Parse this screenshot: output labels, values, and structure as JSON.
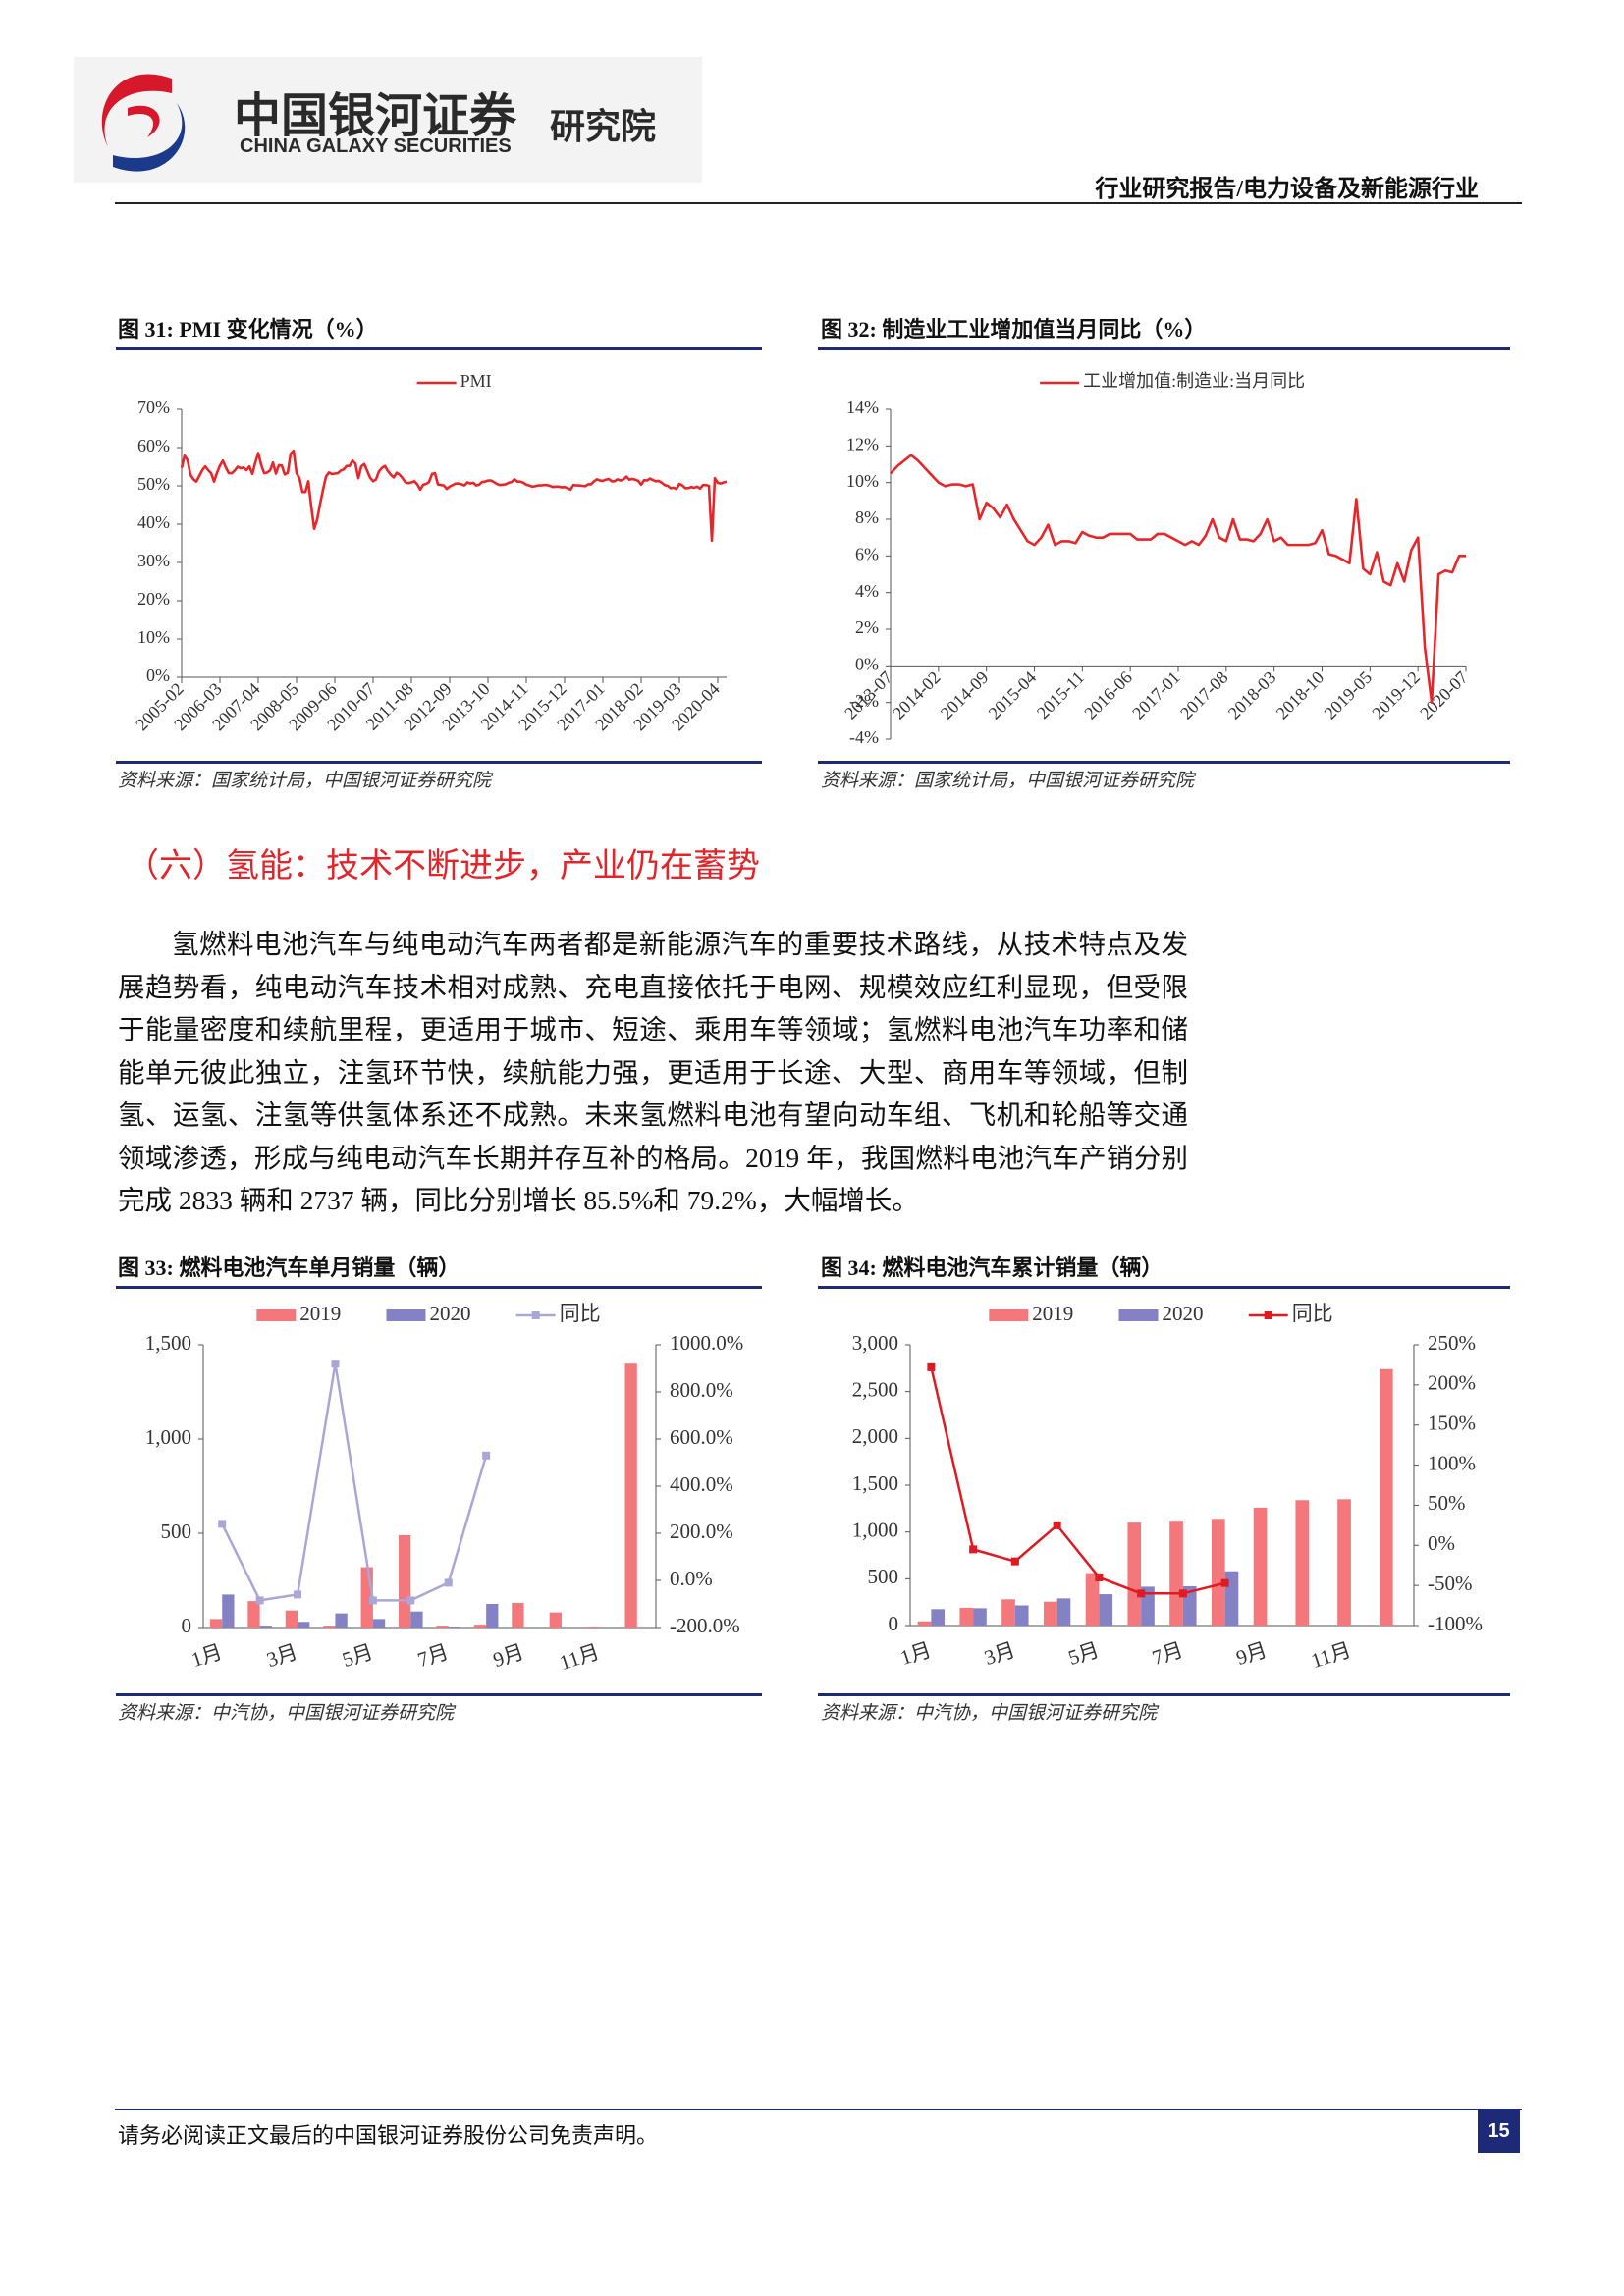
{
  "header": {
    "brand_cn": "中国银河证券",
    "brand_en": "CHINA GALAXY SECURITIES",
    "institute": "研究院",
    "report_type": "行业研究报告/电力设备及新能源行业"
  },
  "figures": [
    {
      "caption": "图 31: PMI 变化情况（%）",
      "source": "资料来源：国家统计局，中国银河证券研究院",
      "chart": {
        "type": "line",
        "categories": [
          "2005-02",
          null,
          null,
          null,
          null,
          null,
          null,
          null,
          null,
          null,
          null,
          null,
          null,
          "2006-03",
          null,
          null,
          null,
          null,
          null,
          null,
          null,
          null,
          null,
          null,
          null,
          null,
          "2007-04",
          null,
          null,
          null,
          null,
          null,
          null,
          null,
          null,
          null,
          null,
          null,
          null,
          "2008-05",
          null,
          null,
          null,
          null,
          null,
          null,
          null,
          null,
          null,
          null,
          null,
          null,
          "2009-06",
          null,
          null,
          null,
          null,
          null,
          null,
          null,
          null,
          null,
          null,
          null,
          null,
          "2010-07",
          null,
          null,
          null,
          null,
          null,
          null,
          null,
          null,
          null,
          null,
          null,
          null,
          "2011-08",
          null,
          null,
          null,
          null,
          null,
          null,
          null,
          null,
          null,
          null,
          null,
          null,
          "2012-09",
          null,
          null,
          null,
          null,
          null,
          null,
          null,
          null,
          null,
          null,
          null,
          null,
          "2013-10",
          null,
          null,
          null,
          null,
          null,
          null,
          null,
          null,
          null,
          null,
          null,
          null,
          "2014-11",
          null,
          null,
          null,
          null,
          null,
          null,
          null,
          null,
          null,
          null,
          null,
          null,
          "2015-12",
          null,
          null,
          null,
          null,
          null,
          null,
          null,
          null,
          null,
          null,
          null,
          null,
          "2017-01",
          null,
          null,
          null,
          null,
          null,
          null,
          null,
          null,
          null,
          null,
          null,
          null,
          "2018-02",
          null,
          null,
          null,
          null,
          null,
          null,
          null,
          null,
          null,
          null,
          null,
          null,
          "2019-03",
          null,
          null,
          null,
          null,
          null,
          null,
          null,
          null,
          null,
          null,
          null,
          null,
          "2020-04",
          null,
          null,
          null
        ],
        "series": [
          {
            "name": "PMI",
            "color": "#e8262a",
            "values": [
              54.7,
              57.9,
              56.7,
              52.9,
              51.7,
              51.1,
              52.6,
              54.1,
              55.1,
              54.1,
              53.3,
              51.1,
              53.4,
              55.3,
              56.6,
              54.8,
              53.3,
              53.3,
              54.0,
              55.0,
              54.6,
              54.8,
              54.1,
              55.1,
              53.1,
              56.1,
              58.6,
              55.5,
              53.3,
              53.5,
              54.0,
              56.1,
              53.2,
              55.4,
              55.3,
              53.0,
              53.4,
              58.4,
              59.2,
              53.3,
              52.0,
              48.4,
              48.4,
              51.2,
              44.6,
              38.8,
              41.2,
              45.3,
              49.0,
              52.4,
              53.5,
              53.1,
              53.2,
              53.3,
              54.0,
              54.3,
              55.2,
              55.2,
              56.6,
              55.8,
              52.0,
              55.1,
              55.7,
              53.9,
              52.1,
              51.2,
              51.7,
              53.8,
              54.7,
              55.2,
              53.9,
              52.9,
              52.2,
              53.4,
              52.9,
              52.0,
              50.9,
              50.7,
              50.9,
              51.2,
              50.4,
              49.0,
              50.3,
              50.5,
              51.0,
              53.1,
              53.3,
              50.4,
              50.2,
              50.1,
              49.2,
              49.8,
              50.2,
              50.6,
              50.6,
              50.4,
              50.1,
              50.9,
              50.6,
              50.8,
              50.1,
              50.3,
              51.0,
              51.1,
              51.4,
              51.4,
              51.0,
              50.5,
              50.2,
              50.3,
              50.4,
              50.8,
              51.0,
              51.7,
              51.1,
              51.1,
              50.8,
              50.3,
              50.1,
              49.8,
              49.9,
              50.1,
              50.1,
              50.2,
              50.2,
              50.0,
              49.7,
              49.8,
              49.8,
              49.6,
              49.7,
              49.4,
              49.0,
              50.2,
              50.1,
              50.1,
              50.0,
              49.9,
              50.4,
              50.4,
              51.2,
              51.7,
              51.4,
              51.3,
              51.6,
              51.8,
              51.2,
              51.2,
              51.7,
              51.4,
              51.7,
              52.4,
              51.6,
              51.8,
              51.6,
              51.3,
              50.3,
              51.5,
              51.4,
              51.9,
              51.5,
              51.2,
              51.3,
              50.8,
              50.2,
              50.0,
              49.4,
              49.5,
              49.2,
              50.5,
              50.1,
              49.4,
              49.4,
              49.7,
              49.5,
              49.8,
              49.3,
              50.2,
              50.2,
              50.0,
              35.7,
              52.0,
              50.8,
              50.6,
              50.9,
              51.1
            ]
          }
        ],
        "ylim": [
          0,
          70
        ],
        "yticks": [
          {
            "value": 0,
            "label": "0%"
          },
          {
            "value": 10,
            "label": "10%"
          },
          {
            "value": 20,
            "label": "20%"
          },
          {
            "value": 30,
            "label": "30%"
          },
          {
            "value": 40,
            "label": "40%"
          },
          {
            "value": 50,
            "label": "50%"
          },
          {
            "value": 60,
            "label": "60%"
          },
          {
            "value": 70,
            "label": "70%"
          }
        ],
        "legend": "top"
      }
    },
    {
      "caption": "图 32: 制造业工业增加值当月同比（%）",
      "source": "资料来源：国家统计局，中国银河证券研究院",
      "chart": {
        "type": "line",
        "categories": [
          "2013-07",
          null,
          null,
          null,
          null,
          null,
          null,
          "2014-02",
          null,
          null,
          null,
          null,
          null,
          null,
          "2014-09",
          null,
          null,
          null,
          null,
          null,
          null,
          "2015-04",
          null,
          null,
          null,
          null,
          null,
          null,
          "2015-11",
          null,
          null,
          null,
          null,
          null,
          null,
          "2016-06",
          null,
          null,
          null,
          null,
          null,
          null,
          "2017-01",
          null,
          null,
          null,
          null,
          null,
          null,
          "2017-08",
          null,
          null,
          null,
          null,
          null,
          null,
          "2018-03",
          null,
          null,
          null,
          null,
          null,
          null,
          "2018-10",
          null,
          null,
          null,
          null,
          null,
          null,
          "2019-05",
          null,
          null,
          null,
          null,
          null,
          null,
          "2019-12",
          null,
          null,
          null,
          null,
          null,
          null,
          "2020-07"
        ],
        "series": [
          {
            "name": "工业增加值:制造业:当月同比",
            "color": "#e8262a",
            "values": [
              10.5,
              10.9,
              11.2,
              11.5,
              11.2,
              10.8,
              10.4,
              10.0,
              9.8,
              9.9,
              9.9,
              9.8,
              9.9,
              8.0,
              8.9,
              8.6,
              8.1,
              8.8,
              8.0,
              7.4,
              6.8,
              6.6,
              7.0,
              7.7,
              6.6,
              6.8,
              6.8,
              6.7,
              7.3,
              7.1,
              7.0,
              7.0,
              7.2,
              7.2,
              7.2,
              7.2,
              6.9,
              6.9,
              6.9,
              7.2,
              7.2,
              7.0,
              6.8,
              6.6,
              6.8,
              6.6,
              7.1,
              8.0,
              7.0,
              6.8,
              8.0,
              6.9,
              6.9,
              6.8,
              7.2,
              8.0,
              6.8,
              7.0,
              6.6,
              6.6,
              6.6,
              6.6,
              6.7,
              7.4,
              6.1,
              6.0,
              5.8,
              5.6,
              9.1,
              5.3,
              5.0,
              6.2,
              4.6,
              4.4,
              5.6,
              4.6,
              6.3,
              7.0,
              1.0,
              -2.0,
              5.0,
              5.2,
              5.1,
              6.0,
              6.0
            ]
          }
        ],
        "ylim": [
          -4,
          14
        ],
        "yticks": [
          {
            "value": -4,
            "label": "-4%"
          },
          {
            "value": -2,
            "label": "-2%"
          },
          {
            "value": 0,
            "label": "0%"
          },
          {
            "value": 2,
            "label": "2%"
          },
          {
            "value": 4,
            "label": "4%"
          },
          {
            "value": 6,
            "label": "6%"
          },
          {
            "value": 8,
            "label": "8%"
          },
          {
            "value": 10,
            "label": "10%"
          },
          {
            "value": 12,
            "label": "12%"
          },
          {
            "value": 14,
            "label": "14%"
          }
        ],
        "legend": "top"
      }
    },
    {
      "caption": "图 33: 燃料电池汽车单月销量（辆）",
      "source": "资料来源：中汽协，中国银河证券研究院",
      "chart": {
        "type": "combo",
        "categories": [
          "1月",
          null,
          "3月",
          null,
          "5月",
          null,
          "7月",
          null,
          "9月",
          null,
          "11月",
          null
        ],
        "series": [
          {
            "name": "2019",
            "type": "bar",
            "color": "#f4777c",
            "values": [
              45,
              140,
              90,
              10,
              320,
              490,
              10,
              15,
              130,
              80,
              5,
              1400
            ]
          },
          {
            "name": "2020",
            "type": "bar",
            "color": "#8482c4",
            "values": [
              175,
              10,
              30,
              75,
              45,
              85,
              5,
              125,
              null,
              null,
              null,
              null
            ]
          },
          {
            "name": "同比",
            "type": "line",
            "axis": "y2",
            "color": "#a9a7d6",
            "values": [
              240,
              -85,
              -60,
              920,
              -85,
              -85,
              -10,
              530,
              null,
              null,
              null,
              null
            ]
          }
        ],
        "ylim": [
          0,
          1500
        ],
        "yticks": [
          0,
          500,
          {
            "value": 1000,
            "label": "1,000"
          },
          {
            "value": 1500,
            "label": "1,500"
          }
        ],
        "y2lim": [
          -200,
          1000
        ],
        "y2ticks": [
          {
            "value": -200,
            "label": "-200.0%"
          },
          {
            "value": 0,
            "label": "0.0%"
          },
          {
            "value": 200,
            "label": "200.0%"
          },
          {
            "value": 400,
            "label": "400.0%"
          },
          {
            "value": 600,
            "label": "600.0%"
          },
          {
            "value": 800,
            "label": "800.0%"
          },
          {
            "value": 1000,
            "label": "1000.0%"
          }
        ],
        "legend": "top"
      }
    },
    {
      "caption": "图 34: 燃料电池汽车累计销量（辆）",
      "source": "资料来源：中汽协，中国银河证券研究院",
      "chart": {
        "type": "combo",
        "categories": [
          "1月",
          null,
          "3月",
          null,
          "5月",
          null,
          "7月",
          null,
          "9月",
          null,
          "11月",
          null
        ],
        "series": [
          {
            "name": "2019",
            "type": "bar",
            "color": "#f4777c",
            "values": [
              45,
              190,
              280,
              255,
              560,
              1100,
              1120,
              1140,
              1260,
              1340,
              1350,
              2740
            ]
          },
          {
            "name": "2020",
            "type": "bar",
            "color": "#8482c4",
            "values": [
              175,
              185,
              215,
              290,
              335,
              415,
              420,
              580,
              null,
              null,
              null,
              null
            ]
          },
          {
            "name": "同比",
            "type": "line",
            "axis": "y2",
            "color": "#e01a22",
            "values": [
              222,
              -5,
              -20,
              25,
              -40,
              -60,
              -60,
              -47,
              null,
              null,
              null,
              null
            ]
          }
        ],
        "ylim": [
          0,
          3000
        ],
        "yticks": [
          0,
          500,
          {
            "value": 1000,
            "label": "1,000"
          },
          {
            "value": 1500,
            "label": "1,500"
          },
          {
            "value": 2000,
            "label": "2,000"
          },
          {
            "value": 2500,
            "label": "2,500"
          },
          {
            "value": 3000,
            "label": "3,000"
          }
        ],
        "y2lim": [
          -100,
          250
        ],
        "y2ticks": [
          {
            "value": -100,
            "label": "-100%"
          },
          {
            "value": -50,
            "label": "-50%"
          },
          {
            "value": 0,
            "label": "0%"
          },
          {
            "value": 50,
            "label": "50%"
          },
          {
            "value": 100,
            "label": "100%"
          },
          {
            "value": 150,
            "label": "150%"
          },
          {
            "value": 200,
            "label": "200%"
          },
          {
            "value": 250,
            "label": "250%"
          }
        ],
        "legend": "top"
      }
    }
  ],
  "section": {
    "heading": "（六）氢能：技术不断进步，产业仍在蓄势",
    "paragraph": "氢燃料电池汽车与纯电动汽车两者都是新能源汽车的重要技术路线，从技术特点及发展趋势看，纯电动汽车技术相对成熟、充电直接依托于电网、规模效应红利显现，但受限于能量密度和续航里程，更适用于城市、短途、乘用车等领域；氢燃料电池汽车功率和储能单元彼此独立，注氢环节快，续航能力强，更适用于长途、大型、商用车等领域，但制氢、运氢、注氢等供氢体系还不成熟。未来氢燃料电池有望向动车组、飞机和轮船等交通领域渗透，形成与纯电动汽车长期并存互补的格局。2019 年，我国燃料电池汽车产销分别完成 2833 辆和 2737 辆，同比分别增长 85.5%和 79.2%，大幅增长。"
  },
  "footer": {
    "disclaimer": "请务必阅读正文最后的中国银河证券股份公司免责声明。",
    "page": 15
  }
}
